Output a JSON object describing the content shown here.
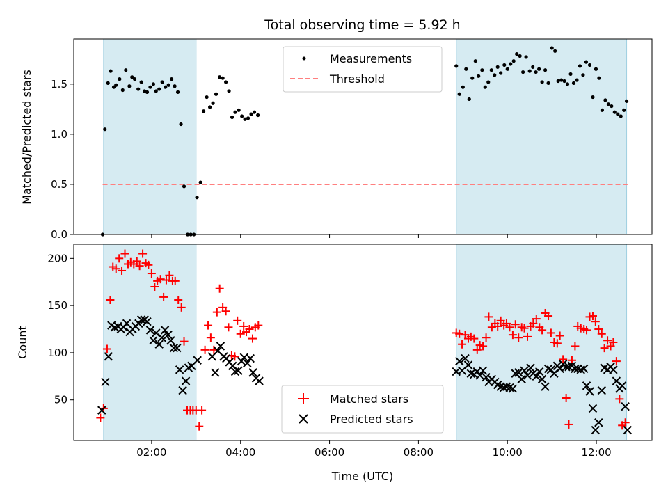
{
  "chart_data": [
    {
      "type": "scatter",
      "title": "Total observing time = 5.92 h",
      "ylabel": "Matched/Predicted stars",
      "xlabel": "",
      "xlim": [
        0.25,
        13.25
      ],
      "ylim": [
        0,
        1.95
      ],
      "yticks": [
        "0.0",
        "0.5",
        "1.0",
        "1.5"
      ],
      "grid": false,
      "legend": {
        "placement": "top-center",
        "entries": [
          "Measurements",
          "Threshold"
        ]
      },
      "threshold": 0.5,
      "threshold_range": [
        0.9,
        12.7
      ],
      "shaded_spans": [
        [
          0.92,
          3.0
        ],
        [
          8.85,
          12.68
        ]
      ],
      "series": [
        {
          "name": "Measurements",
          "color": "#000000",
          "x": [
            0.9,
            0.95,
            1.02,
            1.08,
            1.15,
            1.2,
            1.28,
            1.35,
            1.42,
            1.5,
            1.56,
            1.62,
            1.7,
            1.77,
            1.84,
            1.9,
            1.97,
            2.04,
            2.1,
            2.17,
            2.24,
            2.31,
            2.38,
            2.45,
            2.52,
            2.59,
            2.66,
            2.73,
            2.81,
            2.88,
            2.95,
            3.02,
            3.1,
            3.17,
            3.24,
            3.31,
            3.38,
            3.45,
            3.53,
            3.6,
            3.67,
            3.74,
            3.81,
            3.88,
            3.96,
            4.03,
            4.1,
            4.17,
            4.24,
            4.31,
            4.39,
            8.85,
            8.92,
            9.0,
            9.07,
            9.14,
            9.21,
            9.28,
            9.35,
            9.43,
            9.5,
            9.57,
            9.64,
            9.71,
            9.78,
            9.85,
            9.93,
            10.0,
            10.07,
            10.14,
            10.21,
            10.28,
            10.35,
            10.42,
            10.5,
            10.57,
            10.64,
            10.71,
            10.78,
            10.85,
            10.92,
            11.0,
            11.07,
            11.14,
            11.21,
            11.28,
            11.35,
            11.42,
            11.49,
            11.56,
            11.63,
            11.7,
            11.77,
            11.85,
            11.92,
            11.99,
            12.06,
            12.13,
            12.2,
            12.27,
            12.34,
            12.41,
            12.48,
            12.55,
            12.62,
            12.68
          ],
          "y": [
            0.0,
            1.05,
            1.51,
            1.63,
            1.47,
            1.49,
            1.55,
            1.44,
            1.64,
            1.48,
            1.57,
            1.55,
            1.45,
            1.52,
            1.43,
            1.42,
            1.47,
            1.5,
            1.43,
            1.45,
            1.52,
            1.47,
            1.49,
            1.55,
            1.48,
            1.42,
            1.1,
            0.48,
            0.0,
            0.0,
            0.0,
            0.37,
            0.52,
            1.23,
            1.37,
            1.27,
            1.31,
            1.4,
            1.57,
            1.56,
            1.52,
            1.43,
            1.17,
            1.22,
            1.24,
            1.18,
            1.15,
            1.16,
            1.2,
            1.22,
            1.19,
            1.68,
            1.4,
            1.47,
            1.65,
            1.35,
            1.56,
            1.73,
            1.58,
            1.64,
            1.47,
            1.52,
            1.64,
            1.59,
            1.67,
            1.61,
            1.69,
            1.65,
            1.7,
            1.73,
            1.8,
            1.78,
            1.62,
            1.77,
            1.63,
            1.67,
            1.62,
            1.65,
            1.52,
            1.64,
            1.51,
            1.86,
            1.83,
            1.53,
            1.54,
            1.53,
            1.5,
            1.6,
            1.51,
            1.54,
            1.68,
            1.59,
            1.72,
            1.69,
            1.37,
            1.65,
            1.56,
            1.24,
            1.34,
            1.3,
            1.28,
            1.22,
            1.2,
            1.18,
            1.24,
            1.33
          ],
          "x_plot": [
            0.9,
            0.95,
            1.02,
            1.08,
            1.15,
            1.2,
            1.28,
            1.35,
            1.42,
            1.5,
            1.56,
            1.62,
            1.7,
            1.77,
            1.84,
            1.9,
            1.97,
            2.04,
            2.1,
            2.17,
            2.24,
            2.31,
            2.38,
            2.45,
            2.52,
            2.59,
            2.66,
            2.73,
            2.81,
            2.88,
            2.95,
            3.02,
            3.1,
            3.17,
            3.24,
            3.31,
            3.38,
            3.45,
            3.53,
            3.6,
            3.67,
            3.74,
            3.81,
            3.88,
            3.96,
            4.03,
            4.1,
            4.17,
            4.24,
            4.31,
            4.39
          ]
        }
      ]
    },
    {
      "type": "scatter",
      "title": "",
      "ylabel": "Count",
      "xlabel": "Time (UTC)",
      "xlim": [
        0.25,
        13.25
      ],
      "ylim": [
        7,
        215
      ],
      "yticks": [
        "50",
        "100",
        "150",
        "200"
      ],
      "xticks": [
        "02:00",
        "04:00",
        "06:00",
        "08:00",
        "10:00",
        "12:00"
      ],
      "grid": false,
      "legend": {
        "placement": "bottom-center",
        "entries": [
          "Matched stars",
          "Predicted stars"
        ]
      },
      "shaded_spans": [
        [
          0.92,
          3.0
        ],
        [
          8.85,
          12.68
        ]
      ],
      "series": [
        {
          "name": "Matched stars",
          "color": "#ff0000",
          "marker": "+",
          "x": [
            0.85,
            0.92,
            1.0,
            1.07,
            1.13,
            1.2,
            1.27,
            1.33,
            1.4,
            1.47,
            1.53,
            1.6,
            1.67,
            1.73,
            1.8,
            1.87,
            1.93,
            2.0,
            2.07,
            2.13,
            2.2,
            2.27,
            2.33,
            2.4,
            2.47,
            2.53,
            2.6,
            2.67,
            2.73,
            2.8,
            2.87,
            2.93,
            3.0,
            3.07,
            3.13,
            3.2,
            3.27,
            3.33,
            3.4,
            3.47,
            3.53,
            3.6,
            3.67,
            3.73,
            3.8,
            3.87,
            3.93,
            4.0,
            4.07,
            4.13,
            4.2,
            4.27,
            4.33,
            4.4,
            8.85,
            8.92,
            8.98,
            9.05,
            9.12,
            9.18,
            9.25,
            9.32,
            9.38,
            9.45,
            9.52,
            9.58,
            9.65,
            9.72,
            9.78,
            9.85,
            9.92,
            9.98,
            10.05,
            10.12,
            10.18,
            10.25,
            10.32,
            10.38,
            10.45,
            10.52,
            10.58,
            10.65,
            10.72,
            10.78,
            10.85,
            10.92,
            10.98,
            11.05,
            11.12,
            11.18,
            11.25,
            11.32,
            11.38,
            11.45,
            11.52,
            11.58,
            11.65,
            11.72,
            11.78,
            11.85,
            11.92,
            11.98,
            12.05,
            12.12,
            12.18,
            12.25,
            12.32,
            12.38,
            12.45,
            12.52,
            12.58,
            12.65
          ],
          "y": [
            31,
            41,
            104,
            156,
            191,
            189,
            200,
            187,
            205,
            194,
            196,
            194,
            197,
            192,
            205,
            195,
            193,
            184,
            170,
            176,
            178,
            159,
            177,
            182,
            176,
            176,
            156,
            148,
            112,
            39,
            39,
            39,
            39,
            22,
            39,
            103,
            129,
            116,
            103,
            143,
            168,
            148,
            144,
            127,
            97,
            96,
            134,
            120,
            128,
            122,
            125,
            115,
            127,
            129,
            121,
            120,
            109,
            119,
            115,
            117,
            115,
            103,
            108,
            107,
            116,
            138,
            127,
            131,
            128,
            134,
            129,
            131,
            127,
            119,
            130,
            116,
            127,
            126,
            117,
            128,
            131,
            136,
            127,
            124,
            142,
            139,
            121,
            111,
            110,
            118,
            93,
            52,
            24,
            92,
            107,
            128,
            126,
            125,
            124,
            138,
            139,
            133,
            125,
            120,
            105,
            113,
            107,
            111,
            91,
            51,
            23,
            26
          ],
          "x_plot_count": 54
        },
        {
          "name": "Predicted stars",
          "color": "#000000",
          "marker": "x",
          "x": [
            0.88,
            0.96,
            1.03,
            1.1,
            1.17,
            1.24,
            1.31,
            1.37,
            1.44,
            1.51,
            1.57,
            1.64,
            1.71,
            1.77,
            1.84,
            1.9,
            1.97,
            2.04,
            2.1,
            2.17,
            2.23,
            2.3,
            2.37,
            2.43,
            2.5,
            2.57,
            2.63,
            2.7,
            2.77,
            2.83,
            2.9,
            3.03,
            3.36,
            3.43,
            3.49,
            3.55,
            3.62,
            3.68,
            3.75,
            3.82,
            3.88,
            3.95,
            4.02,
            4.08,
            4.15,
            4.22,
            4.28,
            4.35,
            4.42,
            8.85,
            8.92,
            8.98,
            9.05,
            9.12,
            9.18,
            9.25,
            9.32,
            9.38,
            9.45,
            9.52,
            9.58,
            9.65,
            9.72,
            9.78,
            9.85,
            9.92,
            9.98,
            10.05,
            10.12,
            10.18,
            10.25,
            10.32,
            10.38,
            10.45,
            10.52,
            10.58,
            10.65,
            10.72,
            10.78,
            10.85,
            10.92,
            10.98,
            11.05,
            11.12,
            11.18,
            11.25,
            11.32,
            11.38,
            11.45,
            11.52,
            11.58,
            11.65,
            11.72,
            11.78,
            11.85,
            11.92,
            11.98,
            12.05,
            12.12,
            12.18,
            12.25,
            12.32,
            12.38,
            12.45,
            12.52,
            12.58,
            12.65,
            12.7
          ],
          "y": [
            39,
            69,
            96,
            129,
            127,
            128,
            125,
            127,
            131,
            122,
            125,
            128,
            131,
            135,
            135,
            133,
            124,
            113,
            121,
            109,
            116,
            124,
            119,
            113,
            105,
            105,
            82,
            60,
            70,
            84,
            86,
            92,
            96,
            79,
            102,
            107,
            96,
            94,
            90,
            86,
            80,
            81,
            91,
            95,
            89,
            94,
            79,
            73,
            70,
            80,
            91,
            81,
            94,
            87,
            78,
            77,
            80,
            76,
            81,
            74,
            69,
            72,
            69,
            66,
            64,
            63,
            64,
            63,
            62,
            78,
            79,
            72,
            81,
            76,
            84,
            78,
            75,
            80,
            72,
            64,
            83,
            82,
            78,
            86,
            83,
            88,
            85,
            85,
            86,
            83,
            83,
            82,
            83,
            65,
            59,
            41,
            18,
            26,
            60,
            84,
            82,
            85,
            82,
            70,
            62,
            65,
            43,
            18
          ],
          "x_plot_count": 49
        }
      ]
    }
  ]
}
